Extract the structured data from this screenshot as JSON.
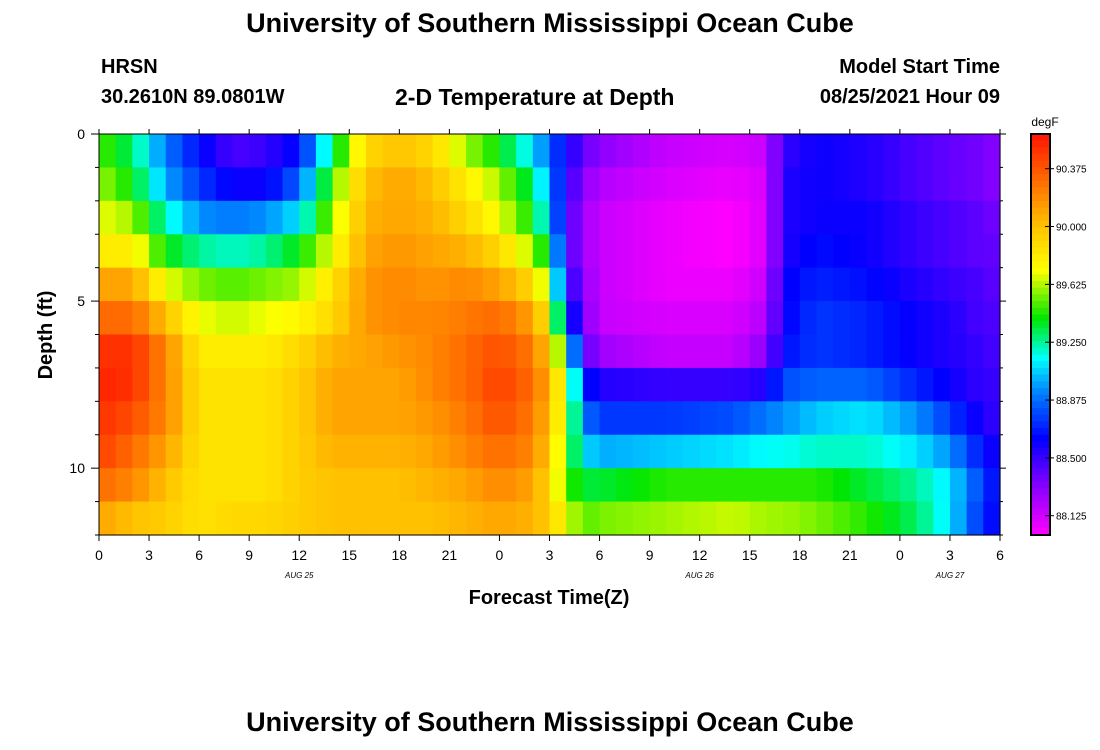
{
  "header": {
    "title": "University of Southern Mississippi Ocean Cube",
    "station": "HRSN",
    "coords": "30.2610N  89.0801W",
    "chart_title": "2-D Temperature at Depth",
    "model_label": "Model Start Time",
    "model_time": "08/25/2021 Hour 09"
  },
  "footer": {
    "title": "University of Southern Mississippi Ocean Cube"
  },
  "chart_data": {
    "type": "heatmap",
    "title": "2-D Temperature at Depth",
    "xlabel": "Forecast Time(Z)",
    "ylabel": "Depth (ft)",
    "x_range_hours": [
      0,
      54
    ],
    "y_range_ft": [
      0,
      12
    ],
    "x_tick_labels": [
      "0",
      "3",
      "6",
      "9",
      "12",
      "15",
      "18",
      "21",
      "0",
      "3",
      "6",
      "9",
      "12",
      "15",
      "18",
      "21",
      "0",
      "3",
      "6"
    ],
    "date_labels": [
      {
        "label": "AUG 25",
        "hour": 12
      },
      {
        "label": "AUG 26",
        "hour": 36
      },
      {
        "label": "AUG 27",
        "hour": 51
      }
    ],
    "y_tick_labels": [
      "0",
      "5",
      "10"
    ],
    "y_tick_values": [
      0,
      5,
      10
    ],
    "colorbar": {
      "unit": "degF",
      "range": [
        88.0,
        90.6
      ],
      "tick_labels": [
        "90.375",
        "90.000",
        "89.625",
        "89.250",
        "88.875",
        "88.500",
        "88.125"
      ],
      "tick_values": [
        90.375,
        90.0,
        89.625,
        89.25,
        88.875,
        88.5,
        88.125
      ]
    },
    "time_hours": [
      0,
      1,
      2,
      3,
      4,
      5,
      6,
      7,
      8,
      9,
      10,
      11,
      12,
      13,
      14,
      15,
      16,
      17,
      18,
      19,
      20,
      21,
      22,
      23,
      24,
      25,
      26,
      27,
      28,
      29,
      30,
      31,
      32,
      33,
      34,
      35,
      36,
      37,
      38,
      39,
      40,
      41,
      42,
      43,
      44,
      45,
      46,
      47,
      48,
      49,
      50,
      51,
      52,
      53,
      54
    ],
    "depth_ft": [
      0.5,
      1.5,
      2.5,
      3.5,
      4.5,
      5.5,
      6.5,
      7.5,
      8.5,
      9.5,
      10.5,
      11.5
    ],
    "profiles": [
      {
        "hour": 0,
        "values": [
          89.5,
          89.6,
          89.7,
          89.8,
          90.1,
          90.3,
          90.5,
          90.55,
          90.5,
          90.45,
          90.3,
          90.1
        ]
      },
      {
        "hour": 2,
        "values": [
          89.3,
          89.4,
          89.6,
          89.8,
          90.1,
          90.3,
          90.5,
          90.5,
          90.4,
          90.3,
          90.2,
          90.0
        ]
      },
      {
        "hour": 4,
        "values": [
          88.9,
          89.0,
          89.2,
          89.4,
          89.7,
          90.0,
          90.2,
          90.2,
          90.2,
          90.1,
          90.0,
          89.95
        ]
      },
      {
        "hour": 6,
        "values": [
          88.65,
          88.75,
          88.95,
          89.25,
          89.55,
          89.7,
          89.8,
          89.85,
          89.85,
          89.85,
          89.85,
          89.85
        ]
      },
      {
        "hour": 8,
        "values": [
          88.45,
          88.6,
          88.9,
          89.2,
          89.5,
          89.65,
          89.8,
          89.85,
          89.85,
          89.85,
          89.85,
          89.9
        ]
      },
      {
        "hour": 10,
        "values": [
          88.5,
          88.6,
          88.95,
          89.25,
          89.55,
          89.7,
          89.8,
          89.85,
          89.85,
          89.85,
          89.85,
          89.9
        ]
      },
      {
        "hour": 12,
        "values": [
          88.65,
          88.85,
          89.1,
          89.4,
          89.6,
          89.75,
          89.9,
          89.95,
          89.95,
          89.95,
          89.95,
          89.95
        ]
      },
      {
        "hour": 14,
        "values": [
          89.3,
          89.5,
          89.6,
          89.7,
          89.85,
          89.9,
          90.05,
          90.1,
          90.1,
          90.05,
          90.0,
          90.0
        ]
      },
      {
        "hour": 16,
        "values": [
          89.9,
          90.0,
          90.05,
          90.1,
          90.15,
          90.15,
          90.1,
          90.1,
          90.1,
          90.05,
          90.0,
          90.0
        ]
      },
      {
        "hour": 18,
        "values": [
          90.0,
          90.1,
          90.1,
          90.15,
          90.2,
          90.2,
          90.15,
          90.1,
          90.1,
          90.05,
          90.0,
          90.0
        ]
      },
      {
        "hour": 20,
        "values": [
          89.9,
          90.0,
          90.05,
          90.1,
          90.15,
          90.2,
          90.2,
          90.2,
          90.15,
          90.1,
          90.05,
          90.0
        ]
      },
      {
        "hour": 22,
        "values": [
          89.6,
          89.8,
          89.9,
          90.05,
          90.2,
          90.25,
          90.3,
          90.3,
          90.25,
          90.2,
          90.1,
          90.05
        ]
      },
      {
        "hour": 24,
        "values": [
          89.4,
          89.6,
          89.7,
          89.9,
          90.1,
          90.3,
          90.4,
          90.45,
          90.4,
          90.3,
          90.2,
          90.1
        ]
      },
      {
        "hour": 26,
        "values": [
          89.1,
          89.3,
          89.4,
          89.6,
          89.9,
          90.1,
          90.25,
          90.3,
          90.25,
          90.2,
          90.1,
          90.05
        ]
      },
      {
        "hour": 27,
        "values": [
          88.85,
          88.95,
          89.05,
          89.3,
          89.5,
          89.8,
          89.95,
          90.05,
          90.0,
          89.95,
          89.9,
          89.95
        ]
      },
      {
        "hour": 28,
        "values": [
          88.6,
          88.55,
          88.5,
          88.5,
          88.6,
          88.8,
          89.3,
          89.6,
          89.6,
          89.5,
          89.5,
          89.7
        ]
      },
      {
        "hour": 29,
        "values": [
          88.4,
          88.3,
          88.25,
          88.25,
          88.3,
          88.35,
          88.45,
          88.7,
          88.9,
          89.1,
          89.35,
          89.5
        ]
      },
      {
        "hour": 30,
        "values": [
          88.3,
          88.2,
          88.15,
          88.15,
          88.15,
          88.15,
          88.25,
          88.55,
          88.75,
          89.0,
          89.35,
          89.55
        ]
      },
      {
        "hour": 34,
        "values": [
          88.15,
          88.1,
          88.05,
          88.05,
          88.05,
          88.1,
          88.15,
          88.5,
          88.75,
          89.05,
          89.45,
          89.6
        ]
      },
      {
        "hour": 38,
        "values": [
          88.1,
          88.05,
          88.0,
          88.0,
          88.05,
          88.1,
          88.15,
          88.5,
          88.8,
          89.1,
          89.45,
          89.65
        ]
      },
      {
        "hour": 40,
        "values": [
          88.15,
          88.1,
          88.1,
          88.1,
          88.15,
          88.2,
          88.3,
          88.55,
          88.9,
          89.15,
          89.45,
          89.6
        ]
      },
      {
        "hour": 41,
        "values": [
          88.5,
          88.55,
          88.55,
          88.55,
          88.6,
          88.6,
          88.65,
          88.8,
          88.95,
          89.15,
          89.45,
          89.6
        ]
      },
      {
        "hour": 43,
        "values": [
          88.6,
          88.6,
          88.6,
          88.65,
          88.7,
          88.75,
          88.75,
          88.85,
          89.05,
          89.2,
          89.45,
          89.55
        ]
      },
      {
        "hour": 46,
        "values": [
          88.55,
          88.55,
          88.6,
          88.6,
          88.65,
          88.7,
          88.7,
          88.85,
          89.1,
          89.2,
          89.35,
          89.45
        ]
      },
      {
        "hour": 49,
        "values": [
          88.45,
          88.45,
          88.5,
          88.5,
          88.55,
          88.6,
          88.6,
          88.7,
          88.95,
          89.1,
          89.25,
          89.3
        ]
      },
      {
        "hour": 51,
        "values": [
          88.4,
          88.4,
          88.45,
          88.45,
          88.5,
          88.55,
          88.55,
          88.6,
          88.75,
          88.95,
          89.1,
          89.1
        ]
      },
      {
        "hour": 53,
        "values": [
          88.35,
          88.35,
          88.4,
          88.4,
          88.45,
          88.45,
          88.5,
          88.5,
          88.55,
          88.65,
          88.75,
          88.7
        ]
      },
      {
        "hour": 54,
        "values": [
          88.3,
          88.3,
          88.35,
          88.4,
          88.4,
          88.45,
          88.45,
          88.5,
          88.5,
          88.55,
          88.6,
          88.6
        ]
      }
    ]
  }
}
